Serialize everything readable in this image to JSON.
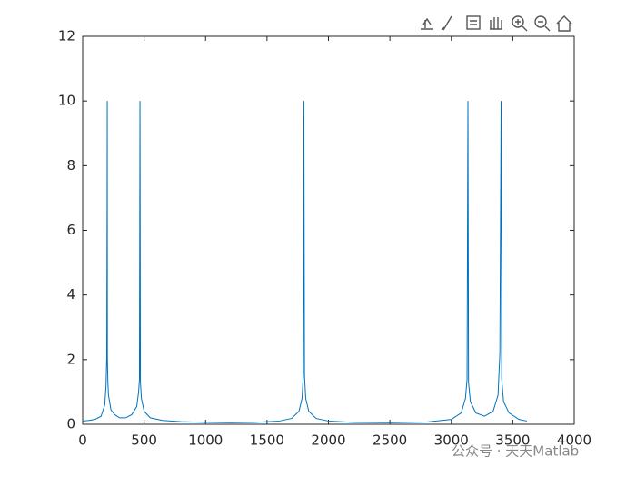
{
  "chart_data": {
    "type": "line",
    "x": [
      0,
      50,
      100,
      150,
      180,
      190,
      196,
      199,
      200,
      201,
      205,
      210,
      230,
      260,
      300,
      350,
      400,
      440,
      455,
      462,
      466,
      470,
      478,
      500,
      550,
      650,
      800,
      1000,
      1200,
      1400,
      1600,
      1700,
      1760,
      1785,
      1795,
      1800,
      1805,
      1815,
      1840,
      1900,
      2000,
      2200,
      2500,
      2800,
      3000,
      3080,
      3115,
      3128,
      3135,
      3140,
      3155,
      3200,
      3270,
      3340,
      3380,
      3395,
      3405,
      3410,
      3425,
      3470,
      3550,
      3615
    ],
    "values": [
      0.1,
      0.12,
      0.15,
      0.25,
      0.6,
      1.2,
      2.1,
      7,
      10,
      2,
      1.3,
      0.9,
      0.45,
      0.3,
      0.2,
      0.2,
      0.3,
      0.55,
      1.0,
      1.4,
      10,
      1.3,
      0.8,
      0.4,
      0.2,
      0.12,
      0.08,
      0.06,
      0.05,
      0.06,
      0.1,
      0.18,
      0.4,
      0.8,
      1.5,
      10,
      1.5,
      0.8,
      0.4,
      0.18,
      0.1,
      0.06,
      0.05,
      0.07,
      0.15,
      0.35,
      0.8,
      1.4,
      10,
      1.3,
      0.7,
      0.35,
      0.25,
      0.4,
      0.9,
      2.2,
      10,
      1.4,
      0.7,
      0.35,
      0.15,
      0.1
    ],
    "color": "#0072bd",
    "xlim": [
      0,
      4000
    ],
    "xticks": [
      0,
      500,
      1000,
      1500,
      2000,
      2500,
      3000,
      3500,
      4000
    ],
    "ylim": [
      0,
      12
    ],
    "yticks": [
      0,
      2,
      4,
      6,
      8,
      10,
      12
    ],
    "grid": false,
    "watermark": "公众号 · 天天Matlab"
  }
}
